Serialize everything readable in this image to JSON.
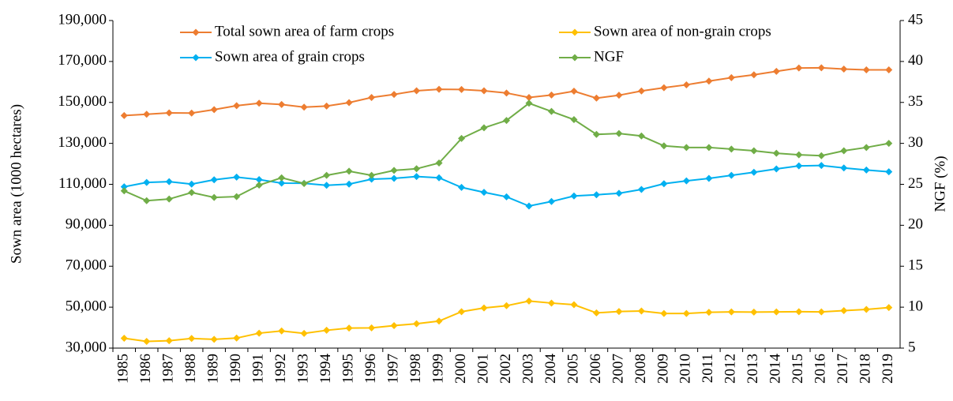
{
  "chart_data": {
    "type": "line",
    "categories": [
      "1985",
      "1986",
      "1987",
      "1988",
      "1989",
      "1990",
      "1991",
      "1992",
      "1993",
      "1994",
      "1995",
      "1996",
      "1997",
      "1998",
      "1999",
      "2000",
      "2001",
      "2002",
      "2003",
      "2004",
      "2005",
      "2006",
      "2007",
      "2008",
      "2009",
      "2010",
      "2011",
      "2012",
      "2013",
      "2014",
      "2015",
      "2016",
      "2017",
      "2018",
      "2019"
    ],
    "y_label": "Sown area (1000 hectares)",
    "y2_label": "NGF (%)",
    "ylim": [
      30000,
      190000
    ],
    "yticks": [
      {
        "value": 30000,
        "label": "30,000"
      },
      {
        "value": 50000,
        "label": "50,000"
      },
      {
        "value": 70000,
        "label": "70,000"
      },
      {
        "value": 90000,
        "label": "90,000"
      },
      {
        "value": 110000,
        "label": "110,000"
      },
      {
        "value": 130000,
        "label": "130,000"
      },
      {
        "value": 150000,
        "label": "150,000"
      },
      {
        "value": 170000,
        "label": "170,000"
      },
      {
        "value": 190000,
        "label": "190,000"
      }
    ],
    "y2lim": [
      5,
      45
    ],
    "y2ticks": [
      5,
      10,
      15,
      20,
      25,
      30,
      35,
      40,
      45
    ],
    "grid": false,
    "series": [
      {
        "name": "Total sown area of farm crops",
        "color": "#ed7d31",
        "values": [
          143600,
          144200,
          144900,
          144800,
          146500,
          148400,
          149600,
          149000,
          147700,
          148200,
          149900,
          152400,
          153900,
          155700,
          156400,
          156300,
          155700,
          154600,
          152400,
          153600,
          155500,
          152100,
          153500,
          155600,
          157200,
          158600,
          160400,
          162100,
          163500,
          165200,
          166800,
          166900,
          166300,
          165900,
          165900
        ]
      },
      {
        "name": "Sown area of grain crops",
        "color": "#00b0f0",
        "values": [
          108800,
          110900,
          111300,
          110100,
          112200,
          113500,
          112300,
          110600,
          110500,
          109500,
          110100,
          112500,
          112900,
          113800,
          113200,
          108500,
          106100,
          103900,
          99400,
          101600,
          104300,
          104900,
          105600,
          107500,
          110300,
          111700,
          112900,
          114400,
          115900,
          117500,
          119000,
          119200,
          118000,
          117000,
          116100
        ]
      },
      {
        "name": "Sown area of non-grain crops",
        "color": "#ffc000",
        "values": [
          34800,
          33300,
          33600,
          34700,
          34300,
          34900,
          37300,
          38400,
          37200,
          38700,
          39800,
          39900,
          41000,
          41900,
          43200,
          47800,
          49600,
          50700,
          53000,
          52000,
          51200,
          47200,
          47900,
          48100,
          46900,
          46900,
          47500,
          47700,
          47600,
          47700,
          47800,
          47700,
          48300,
          48900,
          49800
        ]
      },
      {
        "name": "NGF",
        "color": "#70ad47",
        "axis": "y2",
        "values": [
          24.2,
          23.0,
          23.2,
          24.0,
          23.4,
          23.5,
          24.9,
          25.8,
          25.1,
          26.1,
          26.6,
          26.1,
          26.7,
          26.9,
          27.6,
          30.6,
          31.9,
          32.8,
          34.9,
          33.9,
          32.9,
          31.1,
          31.2,
          30.9,
          29.7,
          29.5,
          29.5,
          29.3,
          29.1,
          28.8,
          28.6,
          28.5,
          29.1,
          29.5,
          30.0
        ]
      }
    ]
  }
}
